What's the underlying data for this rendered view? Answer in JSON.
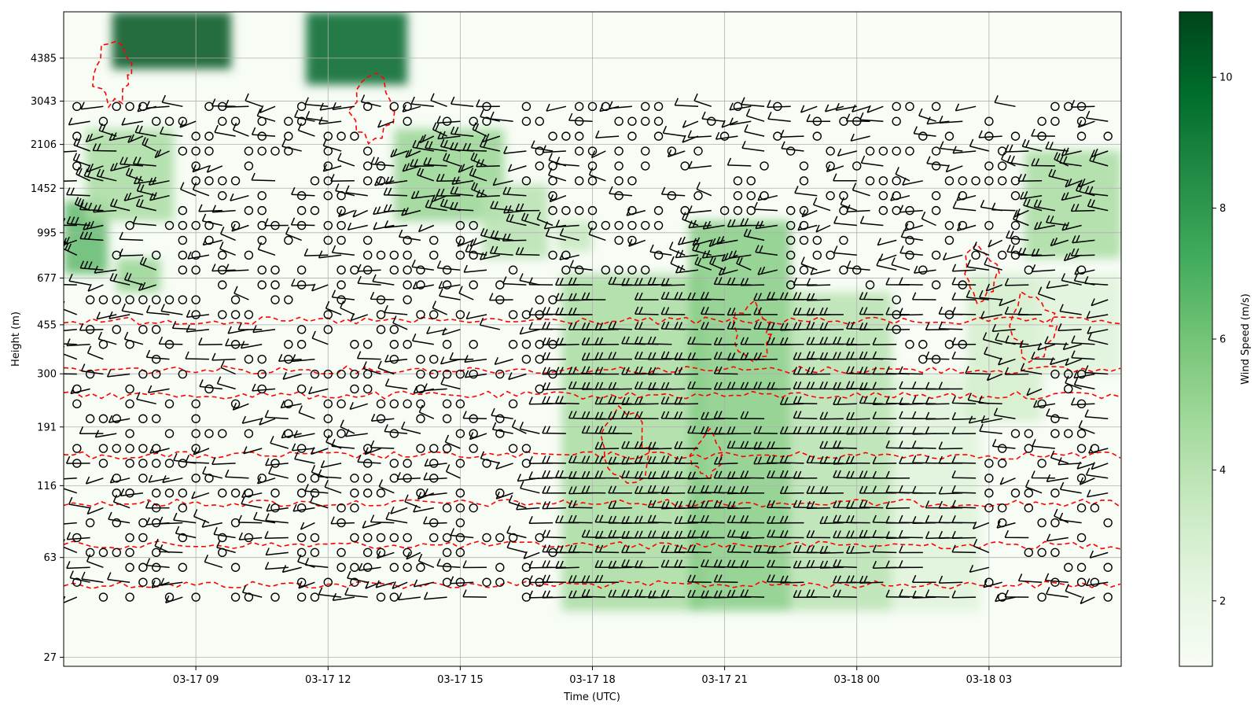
{
  "chart_data": {
    "type": "heatmap",
    "title": "",
    "xlabel": "Time (UTC)",
    "ylabel": "Height (m)",
    "x_ticks": [
      {
        "label": "03-17 09",
        "hour": 9
      },
      {
        "label": "03-17 12",
        "hour": 12
      },
      {
        "label": "03-17 15",
        "hour": 15
      },
      {
        "label": "03-17 18",
        "hour": 18
      },
      {
        "label": "03-17 21",
        "hour": 21
      },
      {
        "label": "03-18 00",
        "hour": 24
      },
      {
        "label": "03-18 03",
        "hour": 27
      }
    ],
    "x_range_hours": [
      6.0,
      30.0
    ],
    "y_ticks": [
      27,
      63,
      116,
      191,
      300,
      455,
      677,
      995,
      1452,
      2106,
      3043,
      4385
    ],
    "y_range": [
      25,
      6500
    ],
    "y_scale": "log",
    "grid": true,
    "colorbar": {
      "label": "Wind Speed (m/s)",
      "colormap": "Greens",
      "ticks": [
        2,
        4,
        6,
        8,
        10
      ],
      "range": [
        1.0,
        11.0
      ]
    },
    "overlays": [
      {
        "kind": "wind-barbs",
        "color": "#000000"
      },
      {
        "kind": "contour-dashed",
        "color": "#ff0000"
      }
    ],
    "wind_speed_regions": [
      {
        "t": [
          7.1,
          9.8
        ],
        "h": [
          4000,
          6500
        ],
        "speed": 10.5
      },
      {
        "t": [
          11.5,
          13.8
        ],
        "h": [
          3500,
          6500
        ],
        "speed": 10.0
      },
      {
        "t": [
          6.0,
          7.0
        ],
        "h": [
          700,
          1300
        ],
        "speed": 6.5
      },
      {
        "t": [
          6.5,
          8.5
        ],
        "h": [
          1100,
          2400
        ],
        "speed": 4.5
      },
      {
        "t": [
          7.2,
          8.2
        ],
        "h": [
          600,
          800
        ],
        "speed": 5.0
      },
      {
        "t": [
          13.5,
          16.0
        ],
        "h": [
          1100,
          2400
        ],
        "speed": 5.0
      },
      {
        "t": [
          15.5,
          17.0
        ],
        "h": [
          800,
          1500
        ],
        "speed": 4.0
      },
      {
        "t": [
          17.2,
          18.0
        ],
        "h": [
          850,
          1100
        ],
        "speed": 3.5
      },
      {
        "t": [
          17.3,
          20.5
        ],
        "h": [
          40,
          700
        ],
        "speed": 4.5
      },
      {
        "t": [
          20.2,
          22.5
        ],
        "h": [
          40,
          1100
        ],
        "speed": 5.5
      },
      {
        "t": [
          22.5,
          24.8
        ],
        "h": [
          40,
          600
        ],
        "speed": 4.0
      },
      {
        "t": [
          24.8,
          26.8
        ],
        "h": [
          40,
          300
        ],
        "speed": 2.5
      },
      {
        "t": [
          26.5,
          28.2
        ],
        "h": [
          200,
          700
        ],
        "speed": 3.0
      },
      {
        "t": [
          27.8,
          30.0
        ],
        "h": [
          800,
          2000
        ],
        "speed": 4.5
      },
      {
        "t": [
          28.0,
          30.0
        ],
        "h": [
          300,
          700
        ],
        "speed": 2.5
      }
    ]
  }
}
